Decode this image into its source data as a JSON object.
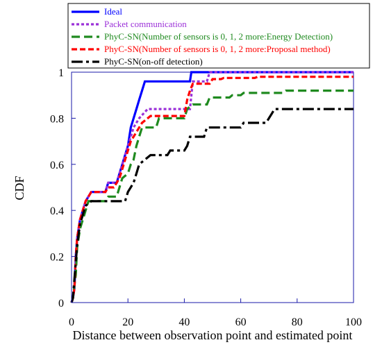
{
  "chart_data": {
    "type": "line",
    "xlabel": "Distance between observation point and estimated point",
    "ylabel": "CDF",
    "xlim": [
      0,
      100
    ],
    "ylim": [
      0,
      1
    ],
    "x_ticks": [
      0,
      20,
      40,
      60,
      80,
      100
    ],
    "y_ticks": [
      0,
      0.2,
      0.4,
      0.6,
      0.8,
      1
    ],
    "x_tick_labels": [
      "0",
      "20",
      "40",
      "60",
      "80",
      "100"
    ],
    "y_tick_labels": [
      "0",
      "0.2",
      "0.4",
      "0.6",
      "0.8",
      "1"
    ],
    "grid": false,
    "legend_position": "top",
    "series": [
      {
        "name": "Ideal",
        "color": "#0000ff",
        "dash": "solid",
        "points": [
          [
            0,
            0
          ],
          [
            0.5,
            0.02
          ],
          [
            1,
            0.06
          ],
          [
            1.5,
            0.2
          ],
          [
            2,
            0.28
          ],
          [
            3,
            0.36
          ],
          [
            4,
            0.4
          ],
          [
            5,
            0.44
          ],
          [
            7,
            0.48
          ],
          [
            12,
            0.48
          ],
          [
            13,
            0.52
          ],
          [
            16,
            0.52
          ],
          [
            17,
            0.56
          ],
          [
            18,
            0.6
          ],
          [
            19,
            0.64
          ],
          [
            20,
            0.68
          ],
          [
            21,
            0.76
          ],
          [
            23,
            0.84
          ],
          [
            24,
            0.88
          ],
          [
            25,
            0.92
          ],
          [
            26,
            0.96
          ],
          [
            42,
            0.96
          ],
          [
            42.5,
            1
          ],
          [
            100,
            1
          ]
        ]
      },
      {
        "name": "Packet communication",
        "color": "#9b30d8",
        "dash": "4,3",
        "points": [
          [
            0,
            0
          ],
          [
            0.5,
            0.02
          ],
          [
            1,
            0.06
          ],
          [
            1.5,
            0.2
          ],
          [
            2,
            0.28
          ],
          [
            3,
            0.36
          ],
          [
            4,
            0.4
          ],
          [
            5,
            0.44
          ],
          [
            7,
            0.48
          ],
          [
            12,
            0.48
          ],
          [
            13,
            0.52
          ],
          [
            16,
            0.52
          ],
          [
            17,
            0.56
          ],
          [
            18,
            0.6
          ],
          [
            19,
            0.64
          ],
          [
            21,
            0.72
          ],
          [
            22,
            0.76
          ],
          [
            24,
            0.8
          ],
          [
            27,
            0.84
          ],
          [
            42,
            0.84
          ],
          [
            43,
            0.96
          ],
          [
            48,
            0.96
          ],
          [
            49,
            1
          ],
          [
            100,
            1
          ]
        ]
      },
      {
        "name": "PhyC-SN(Number of sensors is 0, 1, 2 more:Energy Detection)",
        "color": "#1f8a1f",
        "dash": "12,6",
        "points": [
          [
            0,
            0
          ],
          [
            0.5,
            0.02
          ],
          [
            1.5,
            0.12
          ],
          [
            2,
            0.24
          ],
          [
            3,
            0.32
          ],
          [
            4,
            0.36
          ],
          [
            5,
            0.4
          ],
          [
            6,
            0.44
          ],
          [
            12,
            0.44
          ],
          [
            13,
            0.46
          ],
          [
            16,
            0.46
          ],
          [
            17,
            0.5
          ],
          [
            18,
            0.54
          ],
          [
            20,
            0.56
          ],
          [
            21,
            0.6
          ],
          [
            22,
            0.62
          ],
          [
            23,
            0.68
          ],
          [
            24,
            0.72
          ],
          [
            25,
            0.76
          ],
          [
            30,
            0.76
          ],
          [
            31,
            0.8
          ],
          [
            40,
            0.8
          ],
          [
            41,
            0.84
          ],
          [
            43,
            0.86
          ],
          [
            48,
            0.86
          ],
          [
            49,
            0.89
          ],
          [
            56,
            0.89
          ],
          [
            57,
            0.9
          ],
          [
            60,
            0.9
          ],
          [
            61,
            0.91
          ],
          [
            75,
            0.91
          ],
          [
            76,
            0.92
          ],
          [
            100,
            0.92
          ]
        ]
      },
      {
        "name": "PhyC-SN(Number of sensors is 0, 1, 2 more:Proposal method)",
        "color": "#ff0000",
        "dash": "8,4",
        "points": [
          [
            0,
            0
          ],
          [
            0.5,
            0.02
          ],
          [
            1,
            0.06
          ],
          [
            1.5,
            0.2
          ],
          [
            2,
            0.28
          ],
          [
            3,
            0.36
          ],
          [
            4,
            0.4
          ],
          [
            5,
            0.44
          ],
          [
            7,
            0.48
          ],
          [
            12,
            0.48
          ],
          [
            13,
            0.5
          ],
          [
            15,
            0.5
          ],
          [
            16,
            0.52
          ],
          [
            17,
            0.54
          ],
          [
            18,
            0.58
          ],
          [
            19,
            0.62
          ],
          [
            20,
            0.66
          ],
          [
            21,
            0.7
          ],
          [
            23,
            0.74
          ],
          [
            25,
            0.78
          ],
          [
            28,
            0.81
          ],
          [
            40,
            0.81
          ],
          [
            41,
            0.88
          ],
          [
            42,
            0.92
          ],
          [
            43,
            0.95
          ],
          [
            49,
            0.95
          ],
          [
            50,
            0.97
          ],
          [
            53,
            0.97
          ],
          [
            54,
            0.975
          ],
          [
            65,
            0.975
          ],
          [
            66,
            0.98
          ],
          [
            100,
            0.98
          ]
        ]
      },
      {
        "name": "PhyC-SN(on-off detection)",
        "color": "#000000",
        "dash": "16,5,4,5",
        "points": [
          [
            0,
            0
          ],
          [
            0.5,
            0.02
          ],
          [
            1,
            0.1
          ],
          [
            2,
            0.25
          ],
          [
            3,
            0.34
          ],
          [
            4,
            0.38
          ],
          [
            5,
            0.42
          ],
          [
            7,
            0.44
          ],
          [
            19,
            0.44
          ],
          [
            20,
            0.48
          ],
          [
            22,
            0.52
          ],
          [
            23,
            0.56
          ],
          [
            24,
            0.6
          ],
          [
            28,
            0.64
          ],
          [
            34,
            0.64
          ],
          [
            35,
            0.66
          ],
          [
            40,
            0.66
          ],
          [
            41,
            0.68
          ],
          [
            42,
            0.72
          ],
          [
            47,
            0.72
          ],
          [
            48,
            0.76
          ],
          [
            60,
            0.76
          ],
          [
            61,
            0.78
          ],
          [
            69,
            0.78
          ],
          [
            70,
            0.8
          ],
          [
            71,
            0.82
          ],
          [
            72,
            0.84
          ],
          [
            100,
            0.84
          ]
        ]
      }
    ]
  }
}
